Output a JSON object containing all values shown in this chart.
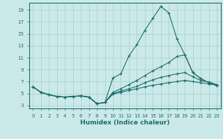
{
  "xlabel": "Humidex (Indice chaleur)",
  "background_color": "#cce9e9",
  "grid_color": "#aad0d0",
  "line_color": "#1a6b6b",
  "xlim": [
    -0.5,
    23.5
  ],
  "ylim": [
    2.5,
    20.2
  ],
  "xticks": [
    0,
    1,
    2,
    3,
    4,
    5,
    6,
    7,
    8,
    9,
    10,
    11,
    12,
    13,
    14,
    15,
    16,
    17,
    18,
    19,
    20,
    21,
    22,
    23
  ],
  "yticks": [
    3,
    5,
    7,
    9,
    11,
    13,
    15,
    17,
    19
  ],
  "line1_x": [
    0,
    1,
    2,
    3,
    4,
    5,
    6,
    7,
    8,
    9,
    10,
    11,
    12,
    13,
    14,
    15,
    16,
    17,
    18,
    19,
    20,
    21,
    22,
    23
  ],
  "line1_y": [
    6.1,
    5.2,
    4.8,
    4.5,
    4.4,
    4.5,
    4.6,
    4.4,
    3.3,
    3.5,
    7.6,
    8.3,
    11.3,
    13.2,
    15.6,
    17.6,
    19.6,
    18.5,
    14.2,
    11.5,
    8.5,
    7.5,
    6.8,
    6.4
  ],
  "line2_x": [
    0,
    1,
    2,
    3,
    4,
    5,
    6,
    7,
    8,
    9,
    10,
    11,
    12,
    13,
    14,
    15,
    16,
    17,
    18,
    19,
    20,
    21,
    22,
    23
  ],
  "line2_y": [
    6.1,
    5.2,
    4.8,
    4.5,
    4.4,
    4.5,
    4.6,
    4.4,
    3.3,
    3.5,
    5.2,
    5.8,
    6.5,
    7.2,
    8.0,
    8.8,
    9.5,
    10.2,
    11.2,
    11.5,
    8.5,
    7.5,
    6.8,
    6.4
  ],
  "line3_x": [
    0,
    1,
    2,
    3,
    4,
    5,
    6,
    7,
    8,
    9,
    10,
    11,
    12,
    13,
    14,
    15,
    16,
    17,
    18,
    19,
    20,
    21,
    22,
    23
  ],
  "line3_y": [
    6.1,
    5.2,
    4.8,
    4.5,
    4.4,
    4.5,
    4.6,
    4.4,
    3.3,
    3.5,
    5.0,
    5.4,
    5.8,
    6.2,
    6.8,
    7.3,
    7.7,
    8.0,
    8.3,
    8.5,
    7.8,
    7.2,
    6.9,
    6.5
  ],
  "line4_x": [
    0,
    1,
    2,
    3,
    4,
    5,
    6,
    7,
    8,
    9,
    10,
    11,
    12,
    13,
    14,
    15,
    16,
    17,
    18,
    19,
    20,
    21,
    22,
    23
  ],
  "line4_y": [
    6.1,
    5.2,
    4.8,
    4.5,
    4.4,
    4.5,
    4.6,
    4.4,
    3.3,
    3.5,
    4.9,
    5.2,
    5.5,
    5.8,
    6.1,
    6.4,
    6.6,
    6.8,
    7.0,
    7.2,
    7.0,
    6.8,
    6.6,
    6.4
  ]
}
